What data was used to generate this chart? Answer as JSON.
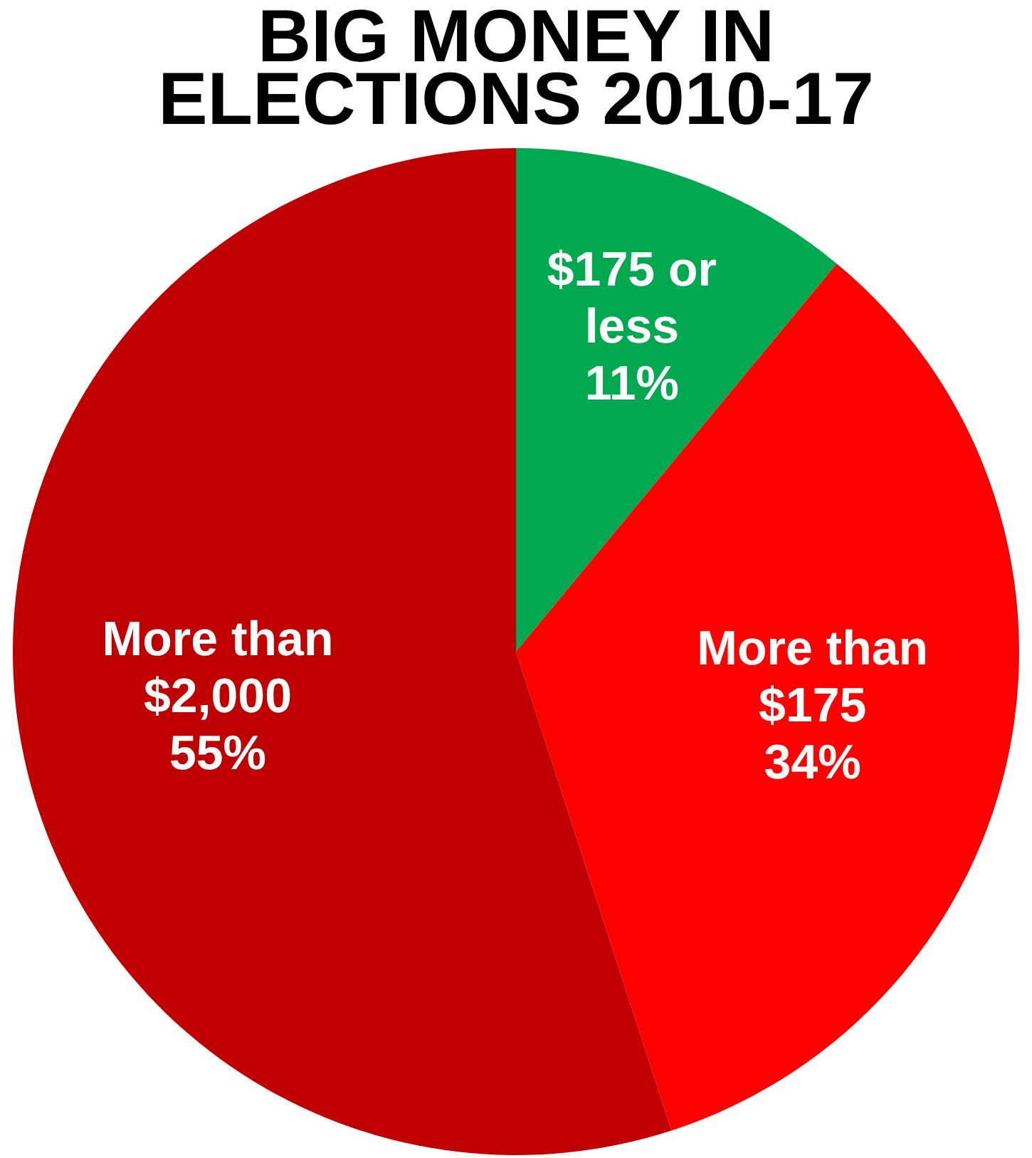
{
  "chart_data": {
    "type": "pie",
    "title": "BIG MONEY IN ELECTIONS 2010-17",
    "categories": [
      "$175 or less",
      "More than $175",
      "More than $2,000"
    ],
    "values": [
      11,
      34,
      55
    ],
    "value_labels": [
      "11%",
      "34%",
      "55%"
    ],
    "colors": [
      "#00a84f",
      "#ff0000",
      "#c00000"
    ],
    "legend": false
  }
}
